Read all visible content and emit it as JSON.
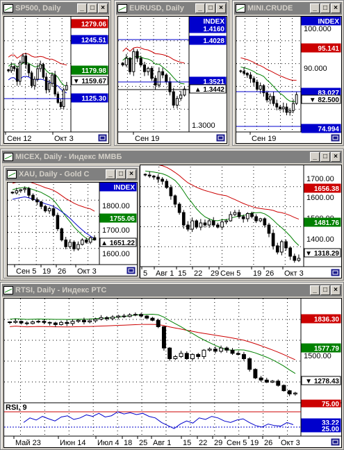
{
  "windows": {
    "sp500": {
      "title": "SP500, Daily"
    },
    "eurusd": {
      "title": "EURUSD, Daily"
    },
    "minicrude": {
      "title": "MINI.CRUDE"
    },
    "micex": {
      "title": "MICEX, Daily - Индекс ММВБ"
    },
    "xau": {
      "title": "XAU, Daily - Gold C"
    },
    "rtsi": {
      "title": "RTSI, Daily - Индекс РТС"
    }
  },
  "window_buttons": {
    "minimize": "_",
    "maximize": "□",
    "close": "×"
  },
  "colors": {
    "red": "#cc0000",
    "green": "#008000",
    "blue": "#0000cc",
    "black": "#000000",
    "bg": "#ffffff",
    "frame": "#d4d0c8",
    "title_inactive": "#808080"
  },
  "chart_data": [
    {
      "id": "sp500",
      "type": "candlestick",
      "x_ticks": [
        "Сен 12",
        "Окт 3"
      ],
      "price_labels": [
        {
          "value": "1279.06",
          "color": "#cc0000"
        },
        {
          "value": "1245.51",
          "color": "#0000cc"
        },
        {
          "value": "1179.98",
          "color": "#008000"
        },
        {
          "value": "1159.67",
          "color": "#000000",
          "marker": "▼"
        },
        {
          "value": "1125.30",
          "color": "#0000cc"
        }
      ],
      "ylim": [
        1050,
        1320
      ],
      "close": [
        1195,
        1205,
        1200,
        1170,
        1215,
        1230,
        1210,
        1190,
        1160,
        1175,
        1200,
        1210,
        1180,
        1150,
        1165,
        1185,
        1140,
        1120,
        1110,
        1150,
        1160
      ]
    },
    {
      "id": "eurusd",
      "type": "candlestick",
      "x_ticks": [
        "Сен 19"
      ],
      "y_ticks": [
        "1.3000"
      ],
      "price_labels": [
        {
          "value": "INDEX",
          "color": "#0000cc"
        },
        {
          "value": "1.4160",
          "color": "#0000cc"
        },
        {
          "value": "1.4028",
          "color": "#0000cc"
        },
        {
          "value": "1.3521",
          "color": "#0000cc"
        },
        {
          "value": "1.3442",
          "color": "#000000",
          "marker": "▲"
        }
      ],
      "ylim": [
        1.28,
        1.45
      ],
      "close": [
        1.38,
        1.39,
        1.37,
        1.4,
        1.39,
        1.38,
        1.37,
        1.375,
        1.36,
        1.35,
        1.37,
        1.365,
        1.355,
        1.34,
        1.32,
        1.33,
        1.335,
        1.344
      ]
    },
    {
      "id": "minicrude",
      "type": "candlestick",
      "x_ticks": [
        "Сен 19"
      ],
      "y_ticks": [
        "100.000",
        "90.000"
      ],
      "price_labels": [
        {
          "value": "INDEX",
          "color": "#0000cc"
        },
        {
          "value": "95.141",
          "color": "#cc0000"
        },
        {
          "value": "83.027",
          "color": "#0000cc"
        },
        {
          "value": "82.500",
          "color": "#000000",
          "marker": "▼"
        },
        {
          "value": "74.994",
          "color": "#0000cc"
        }
      ],
      "ylim": [
        72,
        104
      ],
      "close": [
        89,
        88.5,
        88,
        87,
        86,
        84,
        85,
        83,
        81,
        82,
        80,
        79,
        78.5,
        79,
        77.5,
        78,
        80,
        82.5
      ]
    },
    {
      "id": "micex",
      "type": "candlestick",
      "x_ticks": [
        "5",
        "Авг 1",
        "15",
        "22",
        "29",
        "Сен 5",
        "19",
        "26",
        "Окт 3"
      ],
      "y_ticks": [
        "1700.00",
        "1600.00",
        "1500.00",
        "1400.00"
      ],
      "price_labels": [
        {
          "value": "1656.38",
          "color": "#cc0000"
        },
        {
          "value": "1481.76",
          "color": "#008000"
        },
        {
          "value": "1318.29",
          "color": "#000000",
          "marker": "▼"
        }
      ],
      "ylim": [
        1280,
        1760
      ],
      "close": [
        1720,
        1715,
        1710,
        1700,
        1690,
        1660,
        1620,
        1580,
        1540,
        1480,
        1460,
        1500,
        1470,
        1490,
        1480,
        1500,
        1480,
        1470,
        1495,
        1500,
        1530,
        1540,
        1520,
        1510,
        1535,
        1520,
        1500,
        1510,
        1480,
        1440,
        1380,
        1350,
        1400,
        1370,
        1330,
        1310,
        1320
      ]
    },
    {
      "id": "xau",
      "type": "candlestick",
      "x_ticks": [
        "Сен 5",
        "19",
        "26",
        "Окт 3"
      ],
      "y_ticks": [
        "1800.00",
        "1700.00",
        "1600.00"
      ],
      "price_labels": [
        {
          "value": "INDEX",
          "color": "#0000cc"
        },
        {
          "value": "1755.06",
          "color": "#008000"
        },
        {
          "value": "1651.22",
          "color": "#000000",
          "marker": "▲"
        }
      ],
      "ylim": [
        1540,
        1900
      ],
      "close": [
        1860,
        1870,
        1875,
        1880,
        1850,
        1830,
        1820,
        1800,
        1780,
        1790,
        1760,
        1700,
        1650,
        1620,
        1640,
        1610,
        1630,
        1650,
        1640,
        1660,
        1650
      ]
    },
    {
      "id": "rtsi",
      "type": "candlestick",
      "x_ticks": [
        "Май 23",
        "Июн 14",
        "Июл 4",
        "18",
        "25",
        "Авг 1",
        "15",
        "22",
        "29",
        "Сен 5",
        "19",
        "26",
        "Окт 3"
      ],
      "y_ticks": [
        "1500.00"
      ],
      "price_labels": [
        {
          "value": "1836.30",
          "color": "#cc0000"
        },
        {
          "value": "1577.79",
          "color": "#008000"
        },
        {
          "value": "1278.43",
          "color": "#000000",
          "marker": "▼"
        }
      ],
      "ylim": [
        1200,
        2150
      ],
      "close": [
        1940,
        1950,
        1935,
        1930,
        1945,
        1950,
        1940,
        1935,
        1920,
        1940,
        1930,
        1950,
        1960,
        1945,
        1955,
        1970,
        1985,
        1975,
        1990,
        2000,
        1995,
        2010,
        2015,
        2000,
        1980,
        1960,
        1900,
        1700,
        1600,
        1620,
        1650,
        1600,
        1640,
        1620,
        1680,
        1690,
        1670,
        1700,
        1680,
        1650,
        1640,
        1600,
        1500,
        1420,
        1400,
        1380,
        1390,
        1350,
        1300,
        1270,
        1278
      ]
    },
    {
      "id": "rsi",
      "type": "line",
      "title": "RSI, 9",
      "price_labels": [
        {
          "value": "75.00",
          "color": "#cc0000"
        },
        {
          "value": "33.22",
          "color": "#0000cc"
        },
        {
          "value": "25.00",
          "color": "#0000cc"
        }
      ],
      "ylim": [
        0,
        100
      ],
      "values": [
        40,
        55,
        48,
        60,
        52,
        45,
        58,
        62,
        50,
        55,
        65,
        60,
        70,
        58,
        62,
        75,
        68,
        72,
        66,
        70,
        60,
        55,
        40,
        30,
        20,
        35,
        45,
        38,
        55,
        50,
        60,
        55,
        45,
        40,
        48,
        52,
        40,
        30,
        25,
        35,
        30,
        28,
        40,
        33
      ]
    }
  ]
}
